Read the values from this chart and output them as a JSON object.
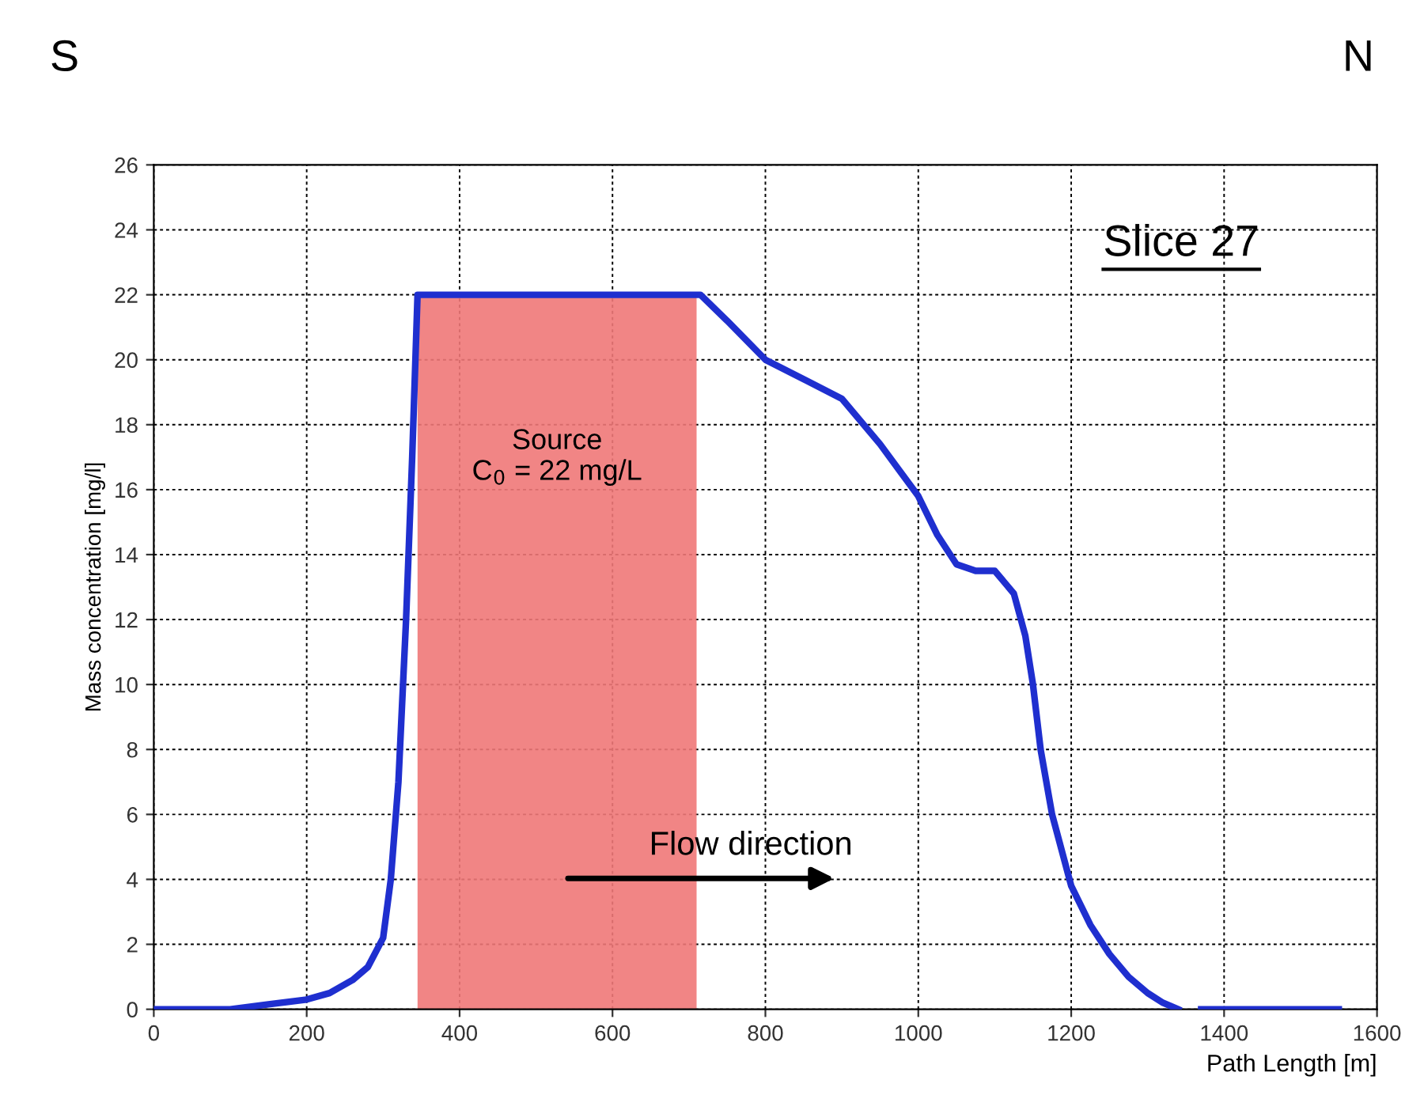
{
  "chart_data": {
    "type": "line",
    "xlabel": "Path Length [m]",
    "ylabel": "Mass concentration [mg/l]",
    "x": [
      0,
      50,
      100,
      150,
      200,
      230,
      260,
      280,
      300,
      310,
      320,
      330,
      338,
      345,
      400,
      500,
      600,
      700,
      715,
      750,
      800,
      850,
      900,
      950,
      975,
      1000,
      1025,
      1050,
      1075,
      1100,
      1125,
      1140,
      1150,
      1160,
      1175,
      1200,
      1225,
      1250,
      1275,
      1300,
      1320,
      1340,
      1355,
      1370,
      1400,
      1500,
      1550
    ],
    "series": [
      {
        "color": "#1f2fcf",
        "values": [
          0,
          0,
          0,
          0.15,
          0.3,
          0.5,
          0.9,
          1.3,
          2.2,
          4,
          7,
          12,
          17,
          22,
          22,
          22,
          22,
          22,
          22,
          21.2,
          20,
          19.4,
          18.8,
          17.4,
          16.6,
          15.8,
          14.6,
          13.7,
          13.5,
          13.5,
          12.8,
          11.5,
          10,
          8,
          6,
          3.8,
          2.6,
          1.7,
          1,
          0.5,
          0.2,
          0,
          null,
          0,
          0,
          0,
          0
        ]
      }
    ],
    "xlim": [
      0,
      1600
    ],
    "xticks": [
      0,
      200,
      400,
      600,
      800,
      1000,
      1200,
      1400,
      1600
    ],
    "ylim": [
      0,
      26
    ],
    "yticks": [
      0,
      2,
      4,
      6,
      8,
      10,
      12,
      14,
      16,
      18,
      20,
      22,
      24,
      26
    ],
    "bands": [
      {
        "axis": "x",
        "from": 345,
        "to": 710,
        "color": "#f07878",
        "label": "Source\nC$_{0}$ = 22 mg/L"
      }
    ],
    "annotations": [
      "S",
      "N",
      "Slice 27",
      "Flow direction"
    ],
    "grid": true,
    "line_style": "solid",
    "marker": "none"
  }
}
